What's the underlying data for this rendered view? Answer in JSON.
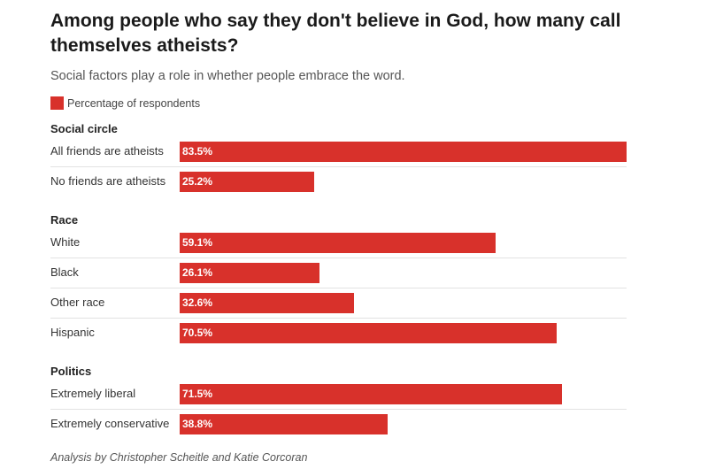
{
  "colors": {
    "bar": "#d8312b"
  },
  "chart_data": {
    "type": "bar",
    "orientation": "horizontal",
    "title": "Among people who say they don't believe in God, how many call themselves atheists?",
    "subtitle": "Social factors play a role in whether people embrace the word.",
    "legend": [
      "Percentage of respondents"
    ],
    "xlim": [
      0,
      83.5
    ],
    "groups": [
      {
        "name": "Social circle",
        "categories": [
          "All friends are atheists",
          "No friends are atheists"
        ],
        "values": [
          83.5,
          25.2
        ],
        "labels": [
          "83.5%",
          "25.2%"
        ]
      },
      {
        "name": "Race",
        "categories": [
          "White",
          "Black",
          "Other race",
          "Hispanic"
        ],
        "values": [
          59.1,
          26.1,
          32.6,
          70.5
        ],
        "labels": [
          "59.1%",
          "26.1%",
          "32.6%",
          "70.5%"
        ]
      },
      {
        "name": "Politics",
        "categories": [
          "Extremely liberal",
          "Extremely conservative"
        ],
        "values": [
          71.5,
          38.8
        ],
        "labels": [
          "71.5%",
          "38.8%"
        ]
      }
    ],
    "footer": "Analysis by Christopher Scheitle and Katie Corcoran"
  }
}
